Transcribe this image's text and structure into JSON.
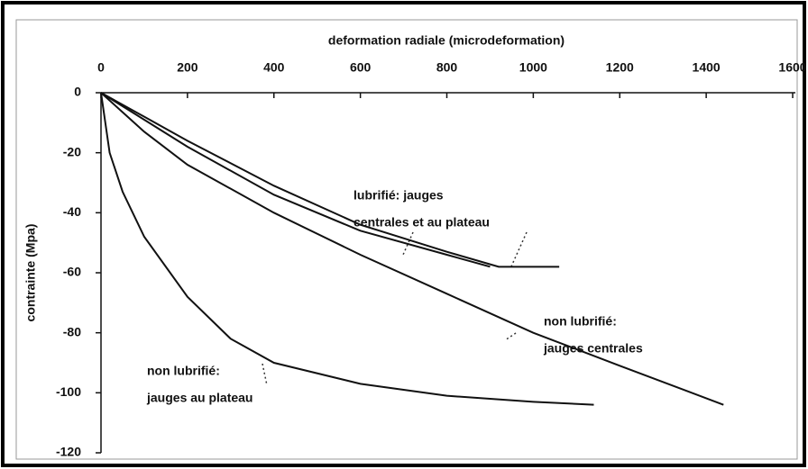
{
  "chart_data": {
    "type": "line",
    "x_label": "deformation radiale (microdeformation)",
    "y_label": "contrainte (Mpa)",
    "xlim": [
      0,
      1600
    ],
    "xticks": [
      0,
      200,
      400,
      600,
      800,
      1000,
      1200,
      1400,
      1600
    ],
    "ylim": [
      -120,
      0
    ],
    "yticks": [
      0,
      -20,
      -40,
      -60,
      -80,
      -100,
      -120
    ],
    "x_axis_position": "top",
    "series": [
      {
        "color": "#111111",
        "x": [
          0,
          100,
          200,
          400,
          600,
          800,
          920,
          1060
        ],
        "values": [
          0,
          -8,
          -16,
          -31,
          -44,
          -53,
          -58,
          -58
        ]
      },
      {
        "color": "#111111",
        "x": [
          0,
          100,
          200,
          400,
          600,
          800,
          900
        ],
        "values": [
          0,
          -9,
          -18,
          -34,
          -46,
          -54,
          -58
        ]
      },
      {
        "color": "#111111",
        "x": [
          0,
          100,
          200,
          400,
          600,
          800,
          1000,
          1200,
          1440
        ],
        "values": [
          0,
          -13,
          -24,
          -40,
          -54,
          -67,
          -80,
          -91,
          -104
        ]
      },
      {
        "color": "#111111",
        "x": [
          0,
          20,
          50,
          100,
          200,
          300,
          400,
          600,
          800,
          1000,
          1140
        ],
        "values": [
          0,
          -20,
          -33,
          -48,
          -68,
          -82,
          -90,
          -97,
          -101,
          -103,
          -104
        ]
      }
    ],
    "annotations": [
      [
        "lubrifié: jauges",
        "centrales et au plateau"
      ],
      [
        "non lubrifié:",
        "jauges centrales"
      ],
      [
        "non lubrifié:",
        "jauges au plateau"
      ]
    ]
  }
}
